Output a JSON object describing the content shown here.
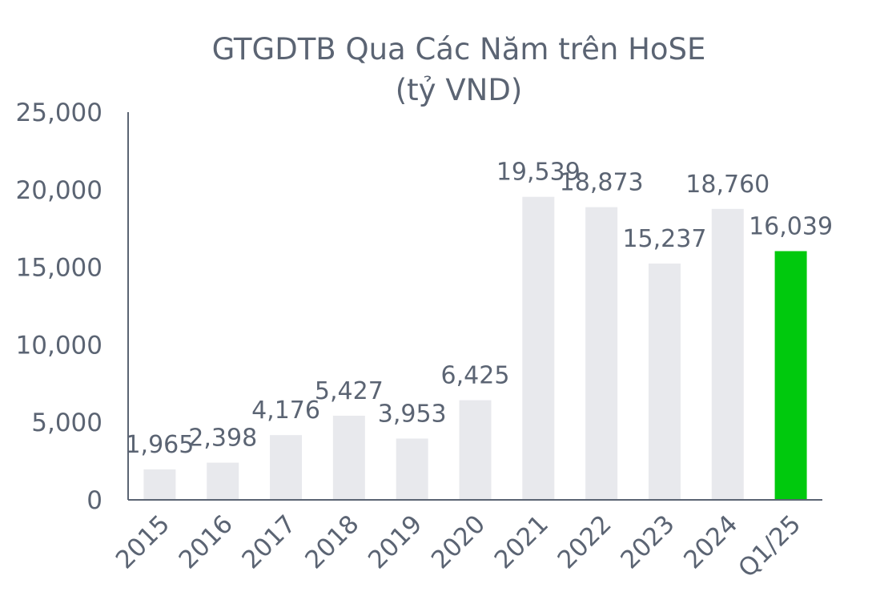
{
  "chart_data": {
    "type": "bar",
    "title": "GTGDTB Qua Các Năm trên HoSE",
    "subtitle": "(tỷ VND)",
    "xlabel": "",
    "ylabel": "",
    "categories": [
      "2015",
      "2016",
      "2017",
      "2018",
      "2019",
      "2020",
      "2021",
      "2022",
      "2023",
      "2024",
      "Q1/25"
    ],
    "values": [
      1965,
      2398,
      4176,
      5427,
      3953,
      6425,
      19539,
      18873,
      15237,
      18760,
      16039
    ],
    "data_labels": [
      "1,965",
      "2,398",
      "4,176",
      "5,427",
      "3,953",
      "6,425",
      "19,539",
      "18,873",
      "15,237",
      "18,760",
      "16,039"
    ],
    "ylim": [
      0,
      25000
    ],
    "yticks": [
      0,
      5000,
      10000,
      15000,
      20000,
      25000
    ],
    "ytick_labels": [
      "0",
      "5,000",
      "10,000",
      "15,000",
      "20,000",
      "25,000"
    ],
    "grid": false,
    "legend": "none",
    "colors": {
      "bar": "#e8e9ed",
      "highlight_bar": "#00c90d",
      "text": "#5b6473",
      "axis": "#5b6473"
    },
    "highlight_index": 10
  }
}
